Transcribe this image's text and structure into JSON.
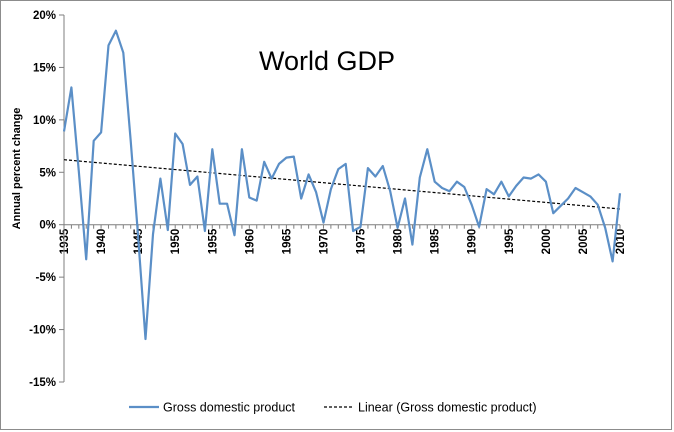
{
  "chart_data": {
    "type": "line",
    "title": "World GDP",
    "xlabel": "",
    "ylabel": "Annual percent change",
    "xlim": [
      1935,
      2010
    ],
    "ylim": [
      -15,
      20
    ],
    "y_ticks": [
      {
        "value": 20,
        "label": "20%"
      },
      {
        "value": 15,
        "label": "15%"
      },
      {
        "value": 10,
        "label": "10%"
      },
      {
        "value": 5,
        "label": "5%"
      },
      {
        "value": 0,
        "label": "0%"
      },
      {
        "value": -5,
        "label": "-5%"
      },
      {
        "value": -10,
        "label": "-10%"
      },
      {
        "value": -15,
        "label": "-15%"
      }
    ],
    "x_ticks": [
      {
        "value": 1935,
        "label": "1935"
      },
      {
        "value": 1940,
        "label": "1940"
      },
      {
        "value": 1945,
        "label": "1945"
      },
      {
        "value": 1950,
        "label": "1950"
      },
      {
        "value": 1955,
        "label": "1955"
      },
      {
        "value": 1960,
        "label": "1960"
      },
      {
        "value": 1965,
        "label": "1965"
      },
      {
        "value": 1970,
        "label": "1970"
      },
      {
        "value": 1975,
        "label": "1975"
      },
      {
        "value": 1980,
        "label": "1980"
      },
      {
        "value": 1985,
        "label": "1985"
      },
      {
        "value": 1990,
        "label": "1990"
      },
      {
        "value": 1995,
        "label": "1995"
      },
      {
        "value": 2000,
        "label": "2000"
      },
      {
        "value": 2005,
        "label": "2005"
      },
      {
        "value": 2010,
        "label": "2010"
      }
    ],
    "series": [
      {
        "name": "Gross domestic product",
        "color": "#5b8fc7",
        "x": [
          1935,
          1936,
          1937,
          1938,
          1939,
          1940,
          1941,
          1942,
          1943,
          1944,
          1945,
          1946,
          1947,
          1948,
          1949,
          1950,
          1951,
          1952,
          1953,
          1954,
          1955,
          1956,
          1957,
          1958,
          1959,
          1960,
          1961,
          1962,
          1963,
          1964,
          1965,
          1966,
          1967,
          1968,
          1969,
          1970,
          1971,
          1972,
          1973,
          1974,
          1975,
          1976,
          1977,
          1978,
          1979,
          1980,
          1981,
          1982,
          1983,
          1984,
          1985,
          1986,
          1987,
          1988,
          1989,
          1990,
          1991,
          1992,
          1993,
          1994,
          1995,
          1996,
          1997,
          1998,
          1999,
          2000,
          2001,
          2002,
          2003,
          2004,
          2005,
          2006,
          2007,
          2008,
          2009,
          2010
        ],
        "values": [
          8.9,
          13.1,
          5.1,
          -3.3,
          8.0,
          8.8,
          17.1,
          18.5,
          16.4,
          8.0,
          -1.1,
          -10.9,
          -0.9,
          4.4,
          -0.5,
          8.7,
          7.7,
          3.8,
          4.6,
          -0.6,
          7.2,
          2.0,
          2.0,
          -1.0,
          7.2,
          2.6,
          2.3,
          6.0,
          4.4,
          5.8,
          6.4,
          6.5,
          2.5,
          4.8,
          3.1,
          0.2,
          3.4,
          5.3,
          5.8,
          -0.6,
          -0.2,
          5.4,
          4.6,
          5.6,
          3.2,
          -0.3,
          2.5,
          -1.9,
          4.5,
          7.2,
          4.1,
          3.5,
          3.2,
          4.1,
          3.6,
          1.9,
          -0.2,
          3.4,
          2.9,
          4.1,
          2.7,
          3.7,
          4.5,
          4.4,
          4.8,
          4.1,
          1.1,
          1.8,
          2.5,
          3.5,
          3.1,
          2.7,
          1.9,
          -0.3,
          -3.5,
          3.0
        ]
      },
      {
        "name": "Linear (Gross domestic product)",
        "color": "#000000",
        "style": "dashed",
        "x": [
          1935,
          2010
        ],
        "values": [
          6.2,
          1.5
        ]
      }
    ],
    "legend_position": "bottom-center",
    "grid": false
  }
}
